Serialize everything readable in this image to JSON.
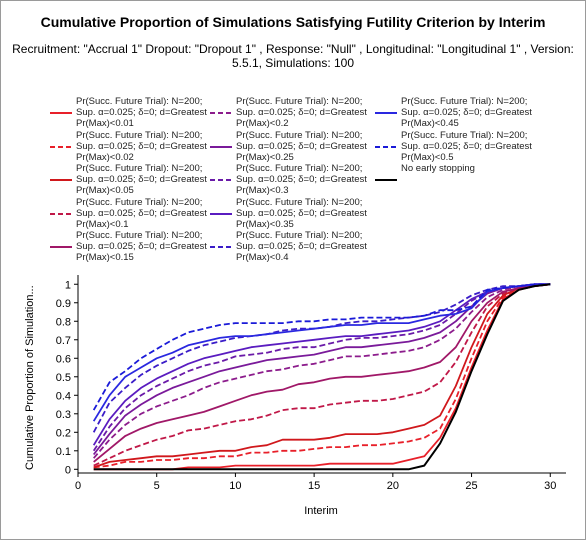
{
  "chart_data": {
    "type": "line",
    "title": "Cumulative Proportion of Simulations Satisfying Futility Criterion by Interim",
    "subtitle": "Recruitment: \"Accrual 1\" Dropout: \"Dropout 1\" , Response: \"Null\" , Longitudinal: \"Longitudinal 1\" , Version: 5.5.1, Simulations: 100",
    "xlabel": "Interim",
    "ylabel": "Cumulative Proportion of Simulation...",
    "xlim": [
      0,
      31
    ],
    "ylim": [
      -0.02,
      1.05
    ],
    "xticks": [
      0,
      5,
      10,
      15,
      20,
      25,
      30
    ],
    "yticks": [
      0,
      0.1,
      0.2,
      0.3,
      0.4,
      0.5,
      0.6,
      0.7,
      0.8,
      0.9,
      1
    ],
    "x": [
      1,
      2,
      3,
      4,
      5,
      6,
      7,
      8,
      9,
      10,
      11,
      12,
      13,
      14,
      15,
      16,
      17,
      18,
      19,
      20,
      21,
      22,
      23,
      24,
      25,
      26,
      27,
      28,
      29,
      30
    ],
    "series": [
      {
        "name": "Pr(Succ. Future Trial): N=200; Sup. α=0.025; δ=0; d=Greatest Pr(Max)<0.01",
        "color": "#e8202a",
        "dash": "solid",
        "values": [
          0,
          0,
          0,
          0,
          0,
          0,
          0.01,
          0.01,
          0.01,
          0.02,
          0.02,
          0.02,
          0.02,
          0.02,
          0.02,
          0.03,
          0.03,
          0.03,
          0.03,
          0.03,
          0.05,
          0.07,
          0.17,
          0.33,
          0.55,
          0.75,
          0.92,
          0.97,
          0.99,
          1.0
        ]
      },
      {
        "name": "Pr(Succ. Future Trial): N=200; Sup. α=0.025; δ=0; d=Greatest Pr(Max)<0.02",
        "color": "#e8202a",
        "dash": "dashed",
        "values": [
          0.01,
          0.02,
          0.04,
          0.04,
          0.05,
          0.05,
          0.06,
          0.06,
          0.07,
          0.07,
          0.09,
          0.09,
          0.1,
          0.1,
          0.11,
          0.12,
          0.12,
          0.13,
          0.13,
          0.14,
          0.15,
          0.17,
          0.22,
          0.38,
          0.6,
          0.8,
          0.93,
          0.97,
          0.99,
          1.0
        ]
      },
      {
        "name": "Pr(Succ. Future Trial): N=200; Sup. α=0.025; δ=0; d=Greatest Pr(Max)<0.05",
        "color": "#d0181c",
        "dash": "solid",
        "values": [
          0.01,
          0.04,
          0.05,
          0.06,
          0.07,
          0.07,
          0.08,
          0.09,
          0.1,
          0.1,
          0.12,
          0.13,
          0.16,
          0.16,
          0.16,
          0.17,
          0.19,
          0.19,
          0.19,
          0.2,
          0.22,
          0.24,
          0.29,
          0.45,
          0.66,
          0.84,
          0.94,
          0.98,
          0.99,
          1.0
        ]
      },
      {
        "name": "Pr(Succ. Future Trial): N=200; Sup. α=0.025; δ=0; d=Greatest Pr(Max)<0.1",
        "color": "#c01848",
        "dash": "dashed",
        "values": [
          0.02,
          0.06,
          0.1,
          0.13,
          0.16,
          0.18,
          0.21,
          0.22,
          0.24,
          0.26,
          0.27,
          0.29,
          0.32,
          0.33,
          0.33,
          0.35,
          0.36,
          0.37,
          0.37,
          0.38,
          0.4,
          0.42,
          0.47,
          0.58,
          0.74,
          0.88,
          0.95,
          0.98,
          0.99,
          1.0
        ]
      },
      {
        "name": "Pr(Succ. Future Trial): N=200; Sup. α=0.025; δ=0; d=Greatest Pr(Max)<0.15",
        "color": "#a01868",
        "dash": "solid",
        "values": [
          0.04,
          0.11,
          0.18,
          0.22,
          0.25,
          0.27,
          0.29,
          0.31,
          0.34,
          0.37,
          0.4,
          0.42,
          0.43,
          0.46,
          0.47,
          0.49,
          0.5,
          0.5,
          0.51,
          0.52,
          0.53,
          0.55,
          0.58,
          0.66,
          0.8,
          0.9,
          0.96,
          0.98,
          0.99,
          1.0
        ]
      },
      {
        "name": "Pr(Succ. Future Trial): N=200; Sup. α=0.025; δ=0; d=Greatest Pr(Max)<0.2",
        "color": "#8c1c8c",
        "dash": "dashed",
        "values": [
          0.06,
          0.16,
          0.24,
          0.3,
          0.34,
          0.37,
          0.4,
          0.44,
          0.47,
          0.49,
          0.51,
          0.53,
          0.54,
          0.56,
          0.57,
          0.59,
          0.61,
          0.61,
          0.62,
          0.63,
          0.64,
          0.66,
          0.7,
          0.76,
          0.85,
          0.93,
          0.97,
          0.99,
          0.99,
          1.0
        ]
      },
      {
        "name": "Pr(Succ. Future Trial): N=200; Sup. α=0.025; δ=0; d=Greatest Pr(Max)<0.25",
        "color": "#7a1a9a",
        "dash": "solid",
        "values": [
          0.08,
          0.19,
          0.29,
          0.35,
          0.4,
          0.44,
          0.47,
          0.5,
          0.53,
          0.55,
          0.57,
          0.59,
          0.6,
          0.61,
          0.62,
          0.64,
          0.66,
          0.66,
          0.67,
          0.68,
          0.69,
          0.71,
          0.74,
          0.8,
          0.88,
          0.95,
          0.98,
          0.99,
          1.0,
          1.0
        ]
      },
      {
        "name": "Pr(Succ. Future Trial): N=200; Sup. α=0.025; δ=0; d=Greatest Pr(Max)<0.3",
        "color": "#6a1aa8",
        "dash": "dashed",
        "values": [
          0.1,
          0.23,
          0.33,
          0.4,
          0.45,
          0.49,
          0.53,
          0.56,
          0.58,
          0.61,
          0.62,
          0.63,
          0.65,
          0.66,
          0.66,
          0.68,
          0.7,
          0.71,
          0.71,
          0.72,
          0.73,
          0.75,
          0.78,
          0.84,
          0.91,
          0.96,
          0.98,
          0.99,
          1.0,
          1.0
        ]
      },
      {
        "name": "Pr(Succ. Future Trial): N=200; Sup. α=0.025; δ=0; d=Greatest Pr(Max)<0.35",
        "color": "#5a1cc0",
        "dash": "solid",
        "values": [
          0.13,
          0.27,
          0.37,
          0.44,
          0.49,
          0.53,
          0.57,
          0.6,
          0.62,
          0.64,
          0.66,
          0.67,
          0.68,
          0.69,
          0.7,
          0.71,
          0.72,
          0.72,
          0.73,
          0.74,
          0.75,
          0.77,
          0.8,
          0.86,
          0.92,
          0.96,
          0.98,
          0.99,
          1.0,
          1.0
        ]
      },
      {
        "name": "Pr(Succ. Future Trial): N=200; Sup. α=0.025; δ=0; d=Greatest Pr(Max)<0.4",
        "color": "#3a1cc8",
        "dash": "dashed",
        "values": [
          0.2,
          0.36,
          0.44,
          0.51,
          0.56,
          0.6,
          0.64,
          0.67,
          0.69,
          0.71,
          0.72,
          0.73,
          0.75,
          0.76,
          0.76,
          0.77,
          0.79,
          0.8,
          0.8,
          0.81,
          0.82,
          0.83,
          0.85,
          0.89,
          0.94,
          0.97,
          0.99,
          0.99,
          1.0,
          1.0
        ]
      },
      {
        "name": "Pr(Succ. Future Trial): N=200; Sup. α=0.025; δ=0; d=Greatest Pr(Max)<0.45",
        "color": "#2a28e0",
        "dash": "solid",
        "values": [
          0.26,
          0.4,
          0.5,
          0.55,
          0.6,
          0.63,
          0.67,
          0.69,
          0.71,
          0.72,
          0.72,
          0.73,
          0.74,
          0.75,
          0.76,
          0.77,
          0.78,
          0.78,
          0.79,
          0.79,
          0.79,
          0.81,
          0.83,
          0.84,
          0.87,
          0.96,
          0.98,
          0.99,
          1.0,
          1.0
        ]
      },
      {
        "name": "Pr(Succ. Future Trial): N=200; Sup. α=0.025; δ=0; d=Greatest Pr(Max)<0.5",
        "color": "#1a1ad8",
        "dash": "dashed",
        "values": [
          0.32,
          0.47,
          0.53,
          0.6,
          0.65,
          0.7,
          0.74,
          0.76,
          0.78,
          0.79,
          0.79,
          0.79,
          0.79,
          0.8,
          0.8,
          0.81,
          0.81,
          0.82,
          0.82,
          0.82,
          0.82,
          0.83,
          0.86,
          0.86,
          0.88,
          0.97,
          0.98,
          0.99,
          1.0,
          1.0
        ]
      },
      {
        "name": "No early stopping",
        "color": "#000000",
        "dash": "solid",
        "values": [
          0,
          0,
          0,
          0,
          0,
          0,
          0,
          0,
          0,
          0,
          0,
          0,
          0,
          0,
          0,
          0,
          0,
          0,
          0,
          0,
          0,
          0.02,
          0.14,
          0.31,
          0.53,
          0.73,
          0.91,
          0.97,
          0.99,
          1.0
        ]
      }
    ]
  }
}
